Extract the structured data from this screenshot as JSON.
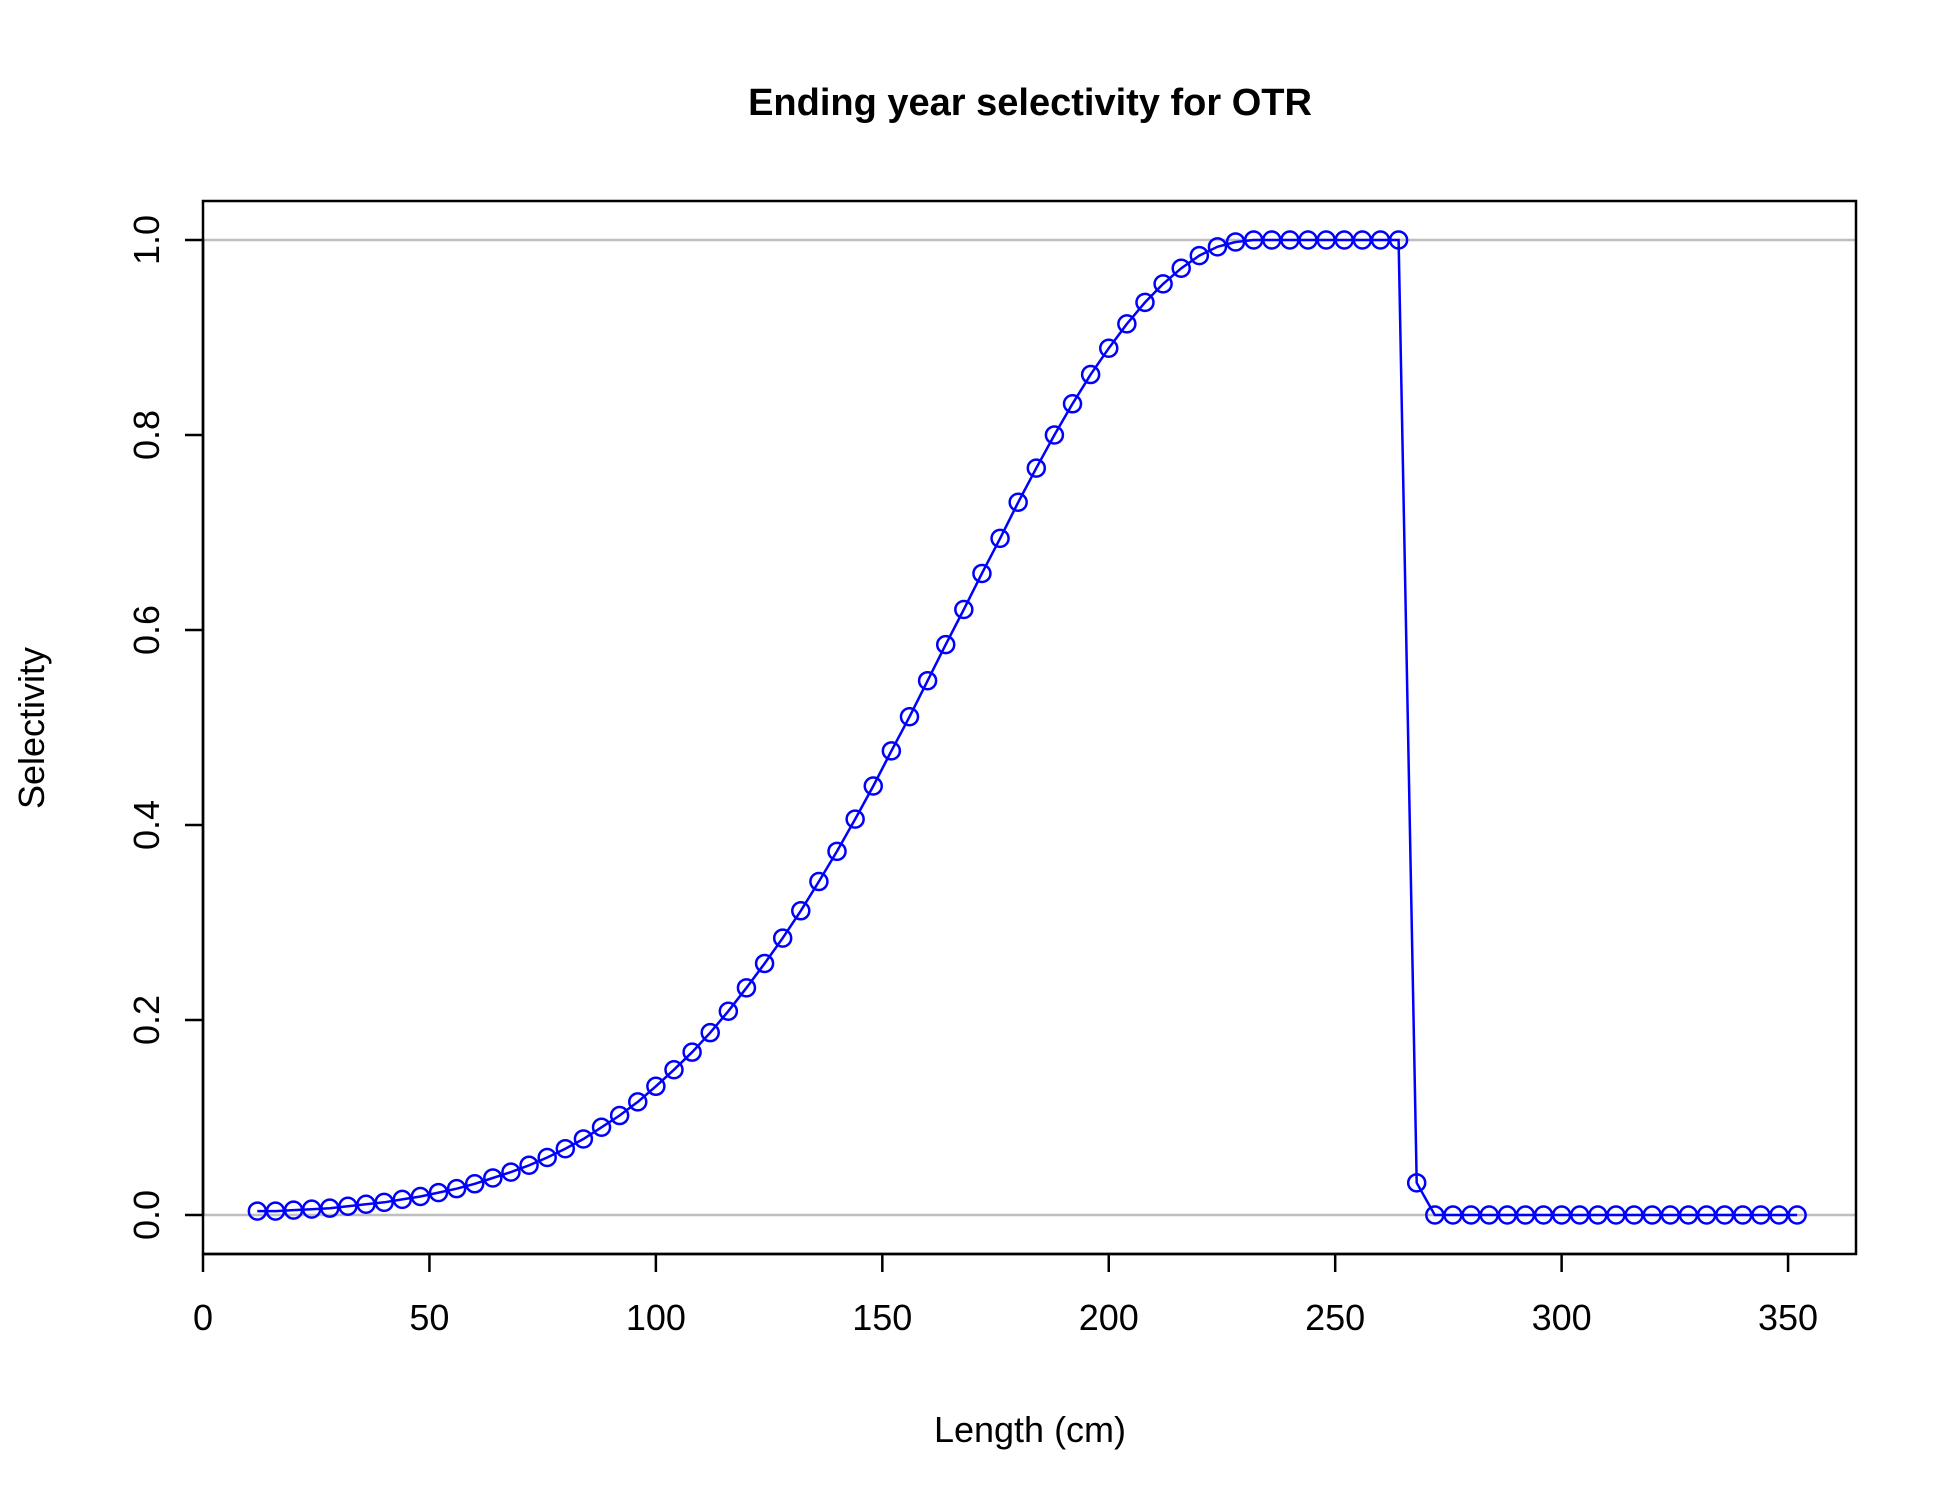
{
  "chart_data": {
    "type": "line",
    "title": "Ending year selectivity for OTR",
    "xlabel": "Length (cm)",
    "ylabel": "Selectivity",
    "xlim": [
      0,
      365
    ],
    "ylim": [
      -0.04,
      1.04
    ],
    "xticks": [
      0,
      50,
      100,
      150,
      200,
      250,
      300,
      350
    ],
    "yticks": [
      0.0,
      0.2,
      0.4,
      0.6,
      0.8,
      1.0
    ],
    "xtick_labels": [
      "0",
      "50",
      "100",
      "150",
      "200",
      "250",
      "300",
      "350"
    ],
    "ytick_labels": [
      "0.0",
      "0.2",
      "0.4",
      "0.6",
      "0.8",
      "1.0"
    ],
    "reference_lines": [
      0,
      1
    ],
    "colors": {
      "series": "#0000ff",
      "reference": "#bebebe",
      "axis": "#000000"
    },
    "grid": false,
    "legend": "none",
    "series": [
      {
        "x": [
          12,
          16,
          20,
          24,
          28,
          32,
          36,
          40,
          44,
          48,
          52,
          56,
          60,
          64,
          68,
          72,
          76,
          80,
          84,
          88,
          92,
          96,
          100,
          104,
          108,
          112,
          116,
          120,
          124,
          128,
          132,
          136,
          140,
          144,
          148,
          152,
          156,
          160,
          164,
          168,
          172,
          176,
          180,
          184,
          188,
          192,
          196,
          200,
          204,
          208,
          212,
          216,
          220,
          224,
          228,
          232,
          236,
          240,
          244,
          248,
          252,
          256,
          260,
          264,
          268,
          272,
          276,
          280,
          284,
          288,
          292,
          296,
          300,
          304,
          308,
          312,
          316,
          320,
          324,
          328,
          332,
          336,
          340,
          344,
          348,
          352
        ],
        "values": [
          0.004,
          0.004,
          0.005,
          0.006,
          0.007,
          0.009,
          0.011,
          0.013,
          0.016,
          0.019,
          0.023,
          0.027,
          0.032,
          0.038,
          0.044,
          0.051,
          0.059,
          0.068,
          0.078,
          0.09,
          0.102,
          0.116,
          0.132,
          0.149,
          0.167,
          0.187,
          0.209,
          0.233,
          0.258,
          0.284,
          0.312,
          0.342,
          0.373,
          0.406,
          0.44,
          0.476,
          0.511,
          0.548,
          0.585,
          0.621,
          0.658,
          0.694,
          0.731,
          0.766,
          0.8,
          0.832,
          0.862,
          0.889,
          0.914,
          0.936,
          0.955,
          0.971,
          0.984,
          0.993,
          0.998,
          1.0,
          1.0,
          1.0,
          1.0,
          1.0,
          1.0,
          1.0,
          1.0,
          1.0,
          0.033,
          0.0,
          0.0,
          0.0,
          0.0,
          0.0,
          0.0,
          0.0,
          0.0,
          0.0,
          0.0,
          0.0,
          0.0,
          0.0,
          0.0,
          0.0,
          0.0,
          0.0,
          0.0,
          0.0,
          0.0,
          0.0
        ]
      }
    ]
  }
}
